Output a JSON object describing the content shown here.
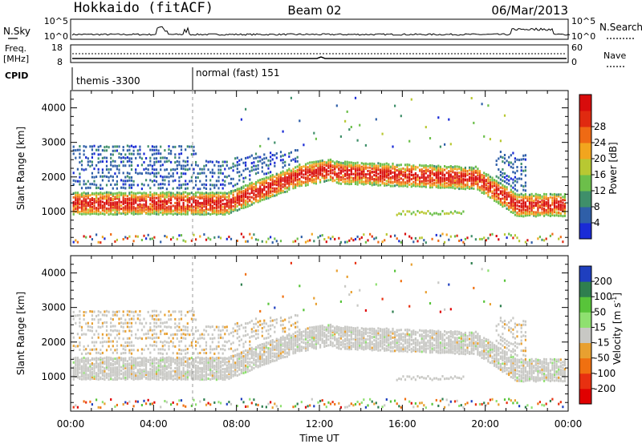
{
  "header": {
    "station": "Hokkaido (fitACF)",
    "beam": "Beam 02",
    "date": "06/Mar/2013"
  },
  "top_panel": {
    "left_label": "N.Sky",
    "right_label": "N.Search",
    "left_ticks": [
      "10^5",
      "10^0"
    ],
    "right_ticks": [
      "10^5",
      "10^0"
    ]
  },
  "freq_panel": {
    "left_label_1": "Freq.",
    "left_label_2": "[MHz]",
    "left_ticks": [
      "18",
      "8"
    ],
    "right_label": "Nave",
    "right_ticks": [
      "60",
      "0"
    ]
  },
  "cpid_panel": {
    "label": "CPID",
    "mode1": "themis -3300",
    "mode2": "normal (fast) 151"
  },
  "chart_data": [
    {
      "type": "heatmap",
      "title": "",
      "xlabel": "Time UT",
      "ylabel": "Slant Range [km]",
      "x_ticks": [
        "00:00",
        "04:00",
        "08:00",
        "12:00",
        "16:00",
        "20:00",
        "00:00"
      ],
      "y_ticks": [
        "1000",
        "2000",
        "3000",
        "4000"
      ],
      "ylim": [
        0,
        4500
      ],
      "colorbar": {
        "label": "Power [dB]",
        "ticks": [
          "4",
          "8",
          "12",
          "16",
          "20",
          "24",
          "28"
        ],
        "colors": [
          "#1a2bd6",
          "#2f5fa8",
          "#3f8f6a",
          "#6cbf4a",
          "#b8c832",
          "#f2a51e",
          "#ef6a14",
          "#e02a10",
          "#d80c0c"
        ]
      }
    },
    {
      "type": "heatmap",
      "title": "",
      "xlabel": "Time UT",
      "ylabel": "Slant Range [km]",
      "x_ticks": [
        "00:00",
        "04:00",
        "08:00",
        "12:00",
        "16:00",
        "20:00",
        "00:00"
      ],
      "y_ticks": [
        "1000",
        "2000",
        "3000",
        "4000"
      ],
      "ylim": [
        0,
        4500
      ],
      "colorbar": {
        "label": "Velocity [m s-1]",
        "label_main": "Velocity [m s",
        "label_exp": "-1",
        "label_end": "]",
        "ticks": [
          "200",
          "100",
          "50",
          "15",
          "-15",
          "-50",
          "-100",
          "-200"
        ],
        "colors": [
          "#1f3fbf",
          "#2f7f4f",
          "#58c43a",
          "#8fe070",
          "#c8c8c4",
          "#e8a030",
          "#f07010",
          "#e83010",
          "#e00000"
        ]
      }
    }
  ]
}
